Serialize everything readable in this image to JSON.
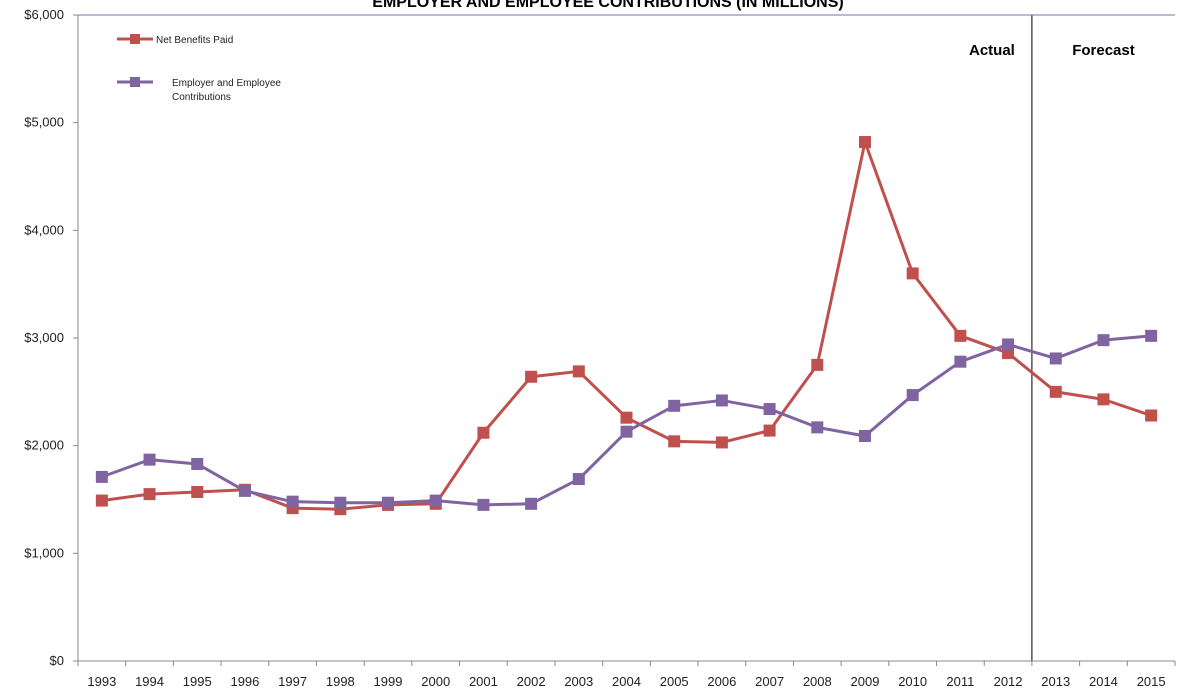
{
  "chart_data": {
    "type": "line",
    "title": "EMPLOYER AND EMPLOYEE CONTRIBUTIONS (IN MILLIONS)",
    "xlabel": "",
    "ylabel": "",
    "categories": [
      "1993",
      "1994",
      "1995",
      "1996",
      "1997",
      "1998",
      "1999",
      "2000",
      "2001",
      "2002",
      "2003",
      "2004",
      "2005",
      "2006",
      "2007",
      "2008",
      "2009",
      "2010",
      "2011",
      "2012",
      "2013",
      "2014",
      "2015"
    ],
    "ylim": [
      0,
      6000
    ],
    "y_ticks": [
      0,
      1000,
      2000,
      3000,
      4000,
      5000,
      6000
    ],
    "y_tick_labels": [
      "$0",
      "$1,000",
      "$2,000",
      "$3,000",
      "$4,000",
      "$5,000",
      "$6,000"
    ],
    "grid": false,
    "legend_position": "top-left",
    "divider_after": "2012",
    "regions": [
      {
        "label": "Actual"
      },
      {
        "label": "Forecast"
      }
    ],
    "series": [
      {
        "name": "Net Benefits Paid",
        "color": "#c0504d",
        "marker": "square",
        "values": [
          1490,
          1550,
          1570,
          1590,
          1420,
          1410,
          1450,
          1460,
          2120,
          2640,
          2690,
          2260,
          2040,
          2030,
          2140,
          2750,
          4820,
          3600,
          3020,
          2860,
          2500,
          2430,
          2280
        ]
      },
      {
        "name": "Employer and Employee Contributions",
        "legend_lines": [
          "Employer and Employee",
          "Contributions"
        ],
        "color": "#8064a2",
        "marker": "square",
        "values": [
          1710,
          1870,
          1830,
          1580,
          1480,
          1470,
          1470,
          1490,
          1450,
          1460,
          1690,
          2130,
          2370,
          2420,
          2340,
          2170,
          2090,
          2470,
          2780,
          2940,
          2810,
          2980,
          3020
        ]
      }
    ]
  }
}
